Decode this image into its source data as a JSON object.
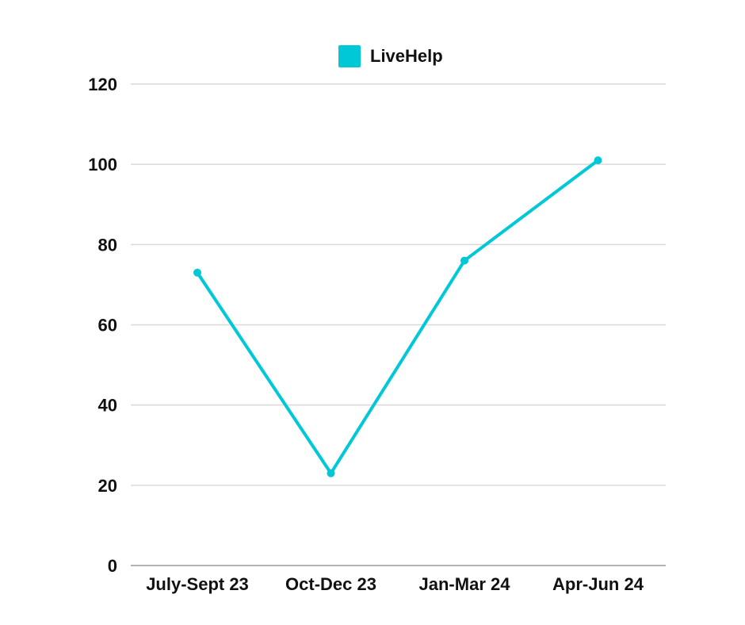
{
  "chart_data": {
    "type": "line",
    "title": "",
    "xlabel": "",
    "ylabel": "",
    "categories": [
      "July-Sept 23",
      "Oct-Dec 23",
      "Jan-Mar 24",
      "Apr-Jun 24"
    ],
    "series": [
      {
        "name": "LiveHelp",
        "values": [
          73,
          23,
          76,
          101
        ],
        "color": "#00c8d7"
      }
    ],
    "ylim": [
      0,
      120
    ],
    "yticks": [
      0,
      20,
      40,
      60,
      80,
      100,
      120
    ],
    "grid": true,
    "legend_position": "top-center"
  }
}
